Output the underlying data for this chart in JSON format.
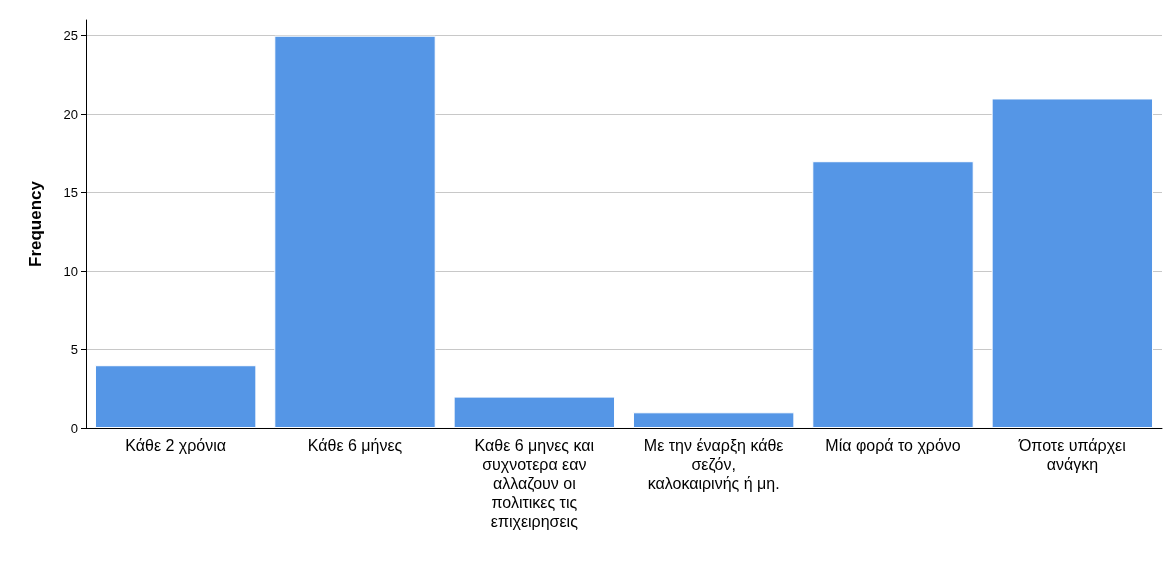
{
  "chart_data": {
    "type": "bar",
    "ylabel": "Frequency",
    "categories": [
      "Κάθε 2 χρόνια",
      "Κάθε 6 μήνες",
      "Καθε 6 μηνες και συχνοτερα εαν αλλαζουν οι πολιτικες τις επιχειρησεις",
      "Με την έναρξη κάθε σεζόν, καλοκαιρινής ή μη.",
      "Μία φορά το χρόνο",
      "Όποτε υπάρχει ανάγκη"
    ],
    "values": [
      4,
      25,
      2,
      1,
      17,
      21
    ],
    "color": "#5596e6",
    "ylim": [
      0,
      26
    ],
    "yticks": [
      0,
      5,
      10,
      15,
      20,
      25
    ],
    "grid": "y"
  }
}
